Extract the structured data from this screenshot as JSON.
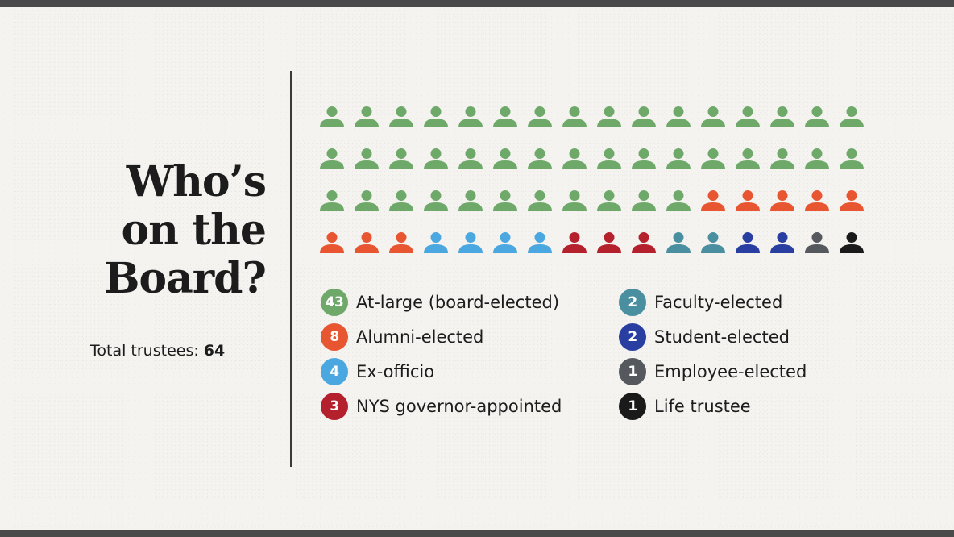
{
  "title": "Who’s\non the\nBoard?",
  "total": {
    "label": "Total trustees:",
    "value": "64"
  },
  "chart_data": {
    "type": "pictogram",
    "title": "Who’s on the Board?",
    "total": 64,
    "icons_per_row": 16,
    "legend_placement": "below",
    "series": [
      {
        "name": "At-large (board-elected)",
        "value": 43,
        "color": "#6ea96a"
      },
      {
        "name": "Alumni-elected",
        "value": 8,
        "color": "#e85531"
      },
      {
        "name": "Ex-officio",
        "value": 4,
        "color": "#4aa7df"
      },
      {
        "name": "NYS governor-appointed",
        "value": 3,
        "color": "#b5202d"
      },
      {
        "name": "Faculty-elected",
        "value": 2,
        "color": "#4a8fa0"
      },
      {
        "name": "Student-elected",
        "value": 2,
        "color": "#283ea0"
      },
      {
        "name": "Employee-elected",
        "value": 1,
        "color": "#55585c"
      },
      {
        "name": "Life trustee",
        "value": 1,
        "color": "#1a1a1a"
      }
    ]
  }
}
